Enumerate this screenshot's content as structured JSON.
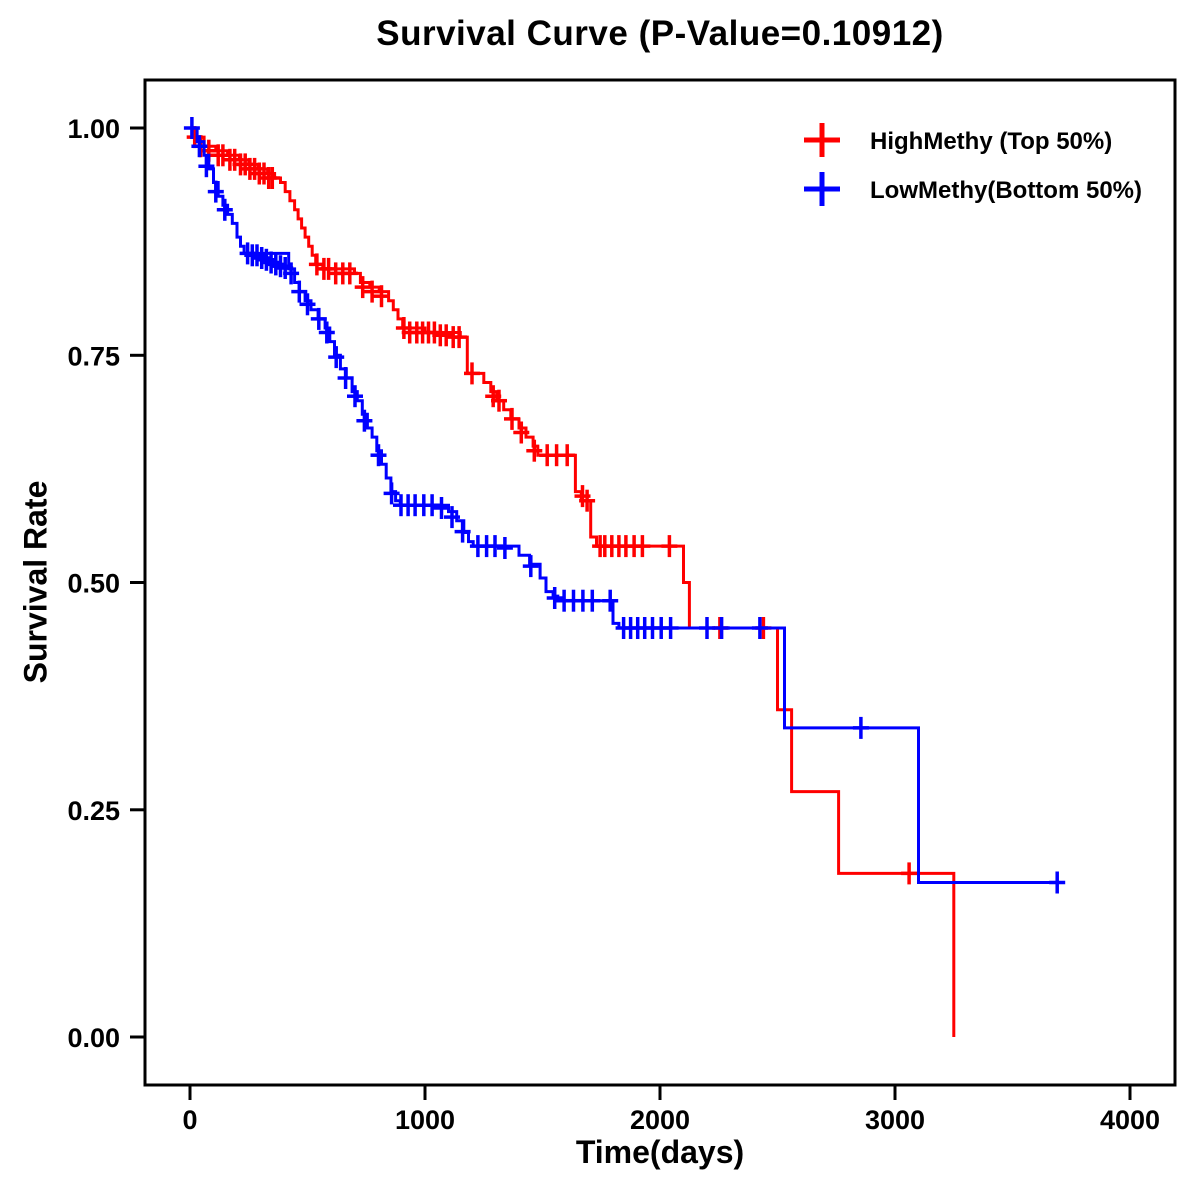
{
  "title": "Survival Curve (P-Value=0.10912)",
  "p_value": 0.10912,
  "chart_data": {
    "type": "line",
    "subtype": "kaplan-meier-step",
    "title": "Survival Curve (P-Value=0.10912)",
    "xlabel": "Time(days)",
    "ylabel": "Survival Rate",
    "xlim": [
      0,
      4000
    ],
    "ylim": [
      0,
      1.0
    ],
    "x_ticks": [
      0,
      1000,
      2000,
      3000,
      4000
    ],
    "x_tick_labels": [
      "0",
      "1000",
      "2000",
      "3000",
      "4000"
    ],
    "y_ticks": [
      0,
      0.25,
      0.5,
      0.75,
      1.0
    ],
    "y_tick_labels": [
      "0.00",
      "0.25",
      "0.50",
      "0.75",
      "1.00"
    ],
    "grid": false,
    "legend_position": "top-right",
    "series": [
      {
        "name": "HighMethy (Top 50%)",
        "color": "#FF0000",
        "extend_to": null,
        "steps": [
          [
            0,
            0.99
          ],
          [
            60,
            0.98
          ],
          [
            110,
            0.975
          ],
          [
            160,
            0.97
          ],
          [
            210,
            0.965
          ],
          [
            250,
            0.96
          ],
          [
            290,
            0.955
          ],
          [
            330,
            0.95
          ],
          [
            360,
            0.945
          ],
          [
            385,
            0.94
          ],
          [
            405,
            0.93
          ],
          [
            425,
            0.92
          ],
          [
            445,
            0.91
          ],
          [
            460,
            0.9
          ],
          [
            475,
            0.89
          ],
          [
            490,
            0.88
          ],
          [
            505,
            0.87
          ],
          [
            520,
            0.86
          ],
          [
            535,
            0.85
          ],
          [
            565,
            0.845
          ],
          [
            700,
            0.84
          ],
          [
            725,
            0.83
          ],
          [
            765,
            0.825
          ],
          [
            805,
            0.82
          ],
          [
            845,
            0.81
          ],
          [
            865,
            0.8
          ],
          [
            885,
            0.79
          ],
          [
            905,
            0.78
          ],
          [
            1000,
            0.775
          ],
          [
            1150,
            0.77
          ],
          [
            1180,
            0.73
          ],
          [
            1250,
            0.72
          ],
          [
            1280,
            0.71
          ],
          [
            1305,
            0.7
          ],
          [
            1335,
            0.69
          ],
          [
            1365,
            0.68
          ],
          [
            1400,
            0.67
          ],
          [
            1430,
            0.66
          ],
          [
            1460,
            0.65
          ],
          [
            1480,
            0.64
          ],
          [
            1640,
            0.6
          ],
          [
            1665,
            0.59
          ],
          [
            1705,
            0.55
          ],
          [
            1730,
            0.54
          ],
          [
            2100,
            0.5
          ],
          [
            2125,
            0.45
          ],
          [
            2500,
            0.36
          ],
          [
            2560,
            0.27
          ],
          [
            2760,
            0.18
          ],
          [
            3250,
            0.0
          ]
        ],
        "censors": [
          [
            20,
            0.99
          ],
          [
            45,
            0.98
          ],
          [
            80,
            0.975
          ],
          [
            120,
            0.97
          ],
          [
            140,
            0.97
          ],
          [
            170,
            0.965
          ],
          [
            190,
            0.965
          ],
          [
            215,
            0.96
          ],
          [
            235,
            0.96
          ],
          [
            255,
            0.955
          ],
          [
            275,
            0.955
          ],
          [
            295,
            0.95
          ],
          [
            315,
            0.95
          ],
          [
            335,
            0.945
          ],
          [
            350,
            0.945
          ],
          [
            540,
            0.85
          ],
          [
            570,
            0.845
          ],
          [
            590,
            0.845
          ],
          [
            620,
            0.84
          ],
          [
            650,
            0.84
          ],
          [
            680,
            0.84
          ],
          [
            735,
            0.825
          ],
          [
            775,
            0.82
          ],
          [
            815,
            0.815
          ],
          [
            910,
            0.78
          ],
          [
            935,
            0.775
          ],
          [
            965,
            0.775
          ],
          [
            990,
            0.775
          ],
          [
            1015,
            0.775
          ],
          [
            1040,
            0.775
          ],
          [
            1065,
            0.772
          ],
          [
            1090,
            0.772
          ],
          [
            1120,
            0.77
          ],
          [
            1145,
            0.77
          ],
          [
            1200,
            0.73
          ],
          [
            1290,
            0.705
          ],
          [
            1315,
            0.7
          ],
          [
            1370,
            0.68
          ],
          [
            1410,
            0.665
          ],
          [
            1465,
            0.645
          ],
          [
            1520,
            0.64
          ],
          [
            1560,
            0.64
          ],
          [
            1605,
            0.64
          ],
          [
            1670,
            0.595
          ],
          [
            1690,
            0.59
          ],
          [
            1745,
            0.54
          ],
          [
            1765,
            0.54
          ],
          [
            1795,
            0.54
          ],
          [
            1825,
            0.54
          ],
          [
            1855,
            0.54
          ],
          [
            1890,
            0.54
          ],
          [
            1925,
            0.54
          ],
          [
            2040,
            0.54
          ],
          [
            2255,
            0.45
          ],
          [
            2440,
            0.45
          ],
          [
            3060,
            0.18
          ]
        ]
      },
      {
        "name": "LowMethy(Bottom 50%)",
        "color": "#0000FF",
        "extend_to": 3720,
        "steps": [
          [
            0,
            1.0
          ],
          [
            30,
            0.985
          ],
          [
            60,
            0.97
          ],
          [
            80,
            0.955
          ],
          [
            100,
            0.94
          ],
          [
            120,
            0.925
          ],
          [
            140,
            0.915
          ],
          [
            160,
            0.905
          ],
          [
            180,
            0.895
          ],
          [
            200,
            0.88
          ],
          [
            215,
            0.87
          ],
          [
            230,
            0.862
          ],
          [
            420,
            0.845
          ],
          [
            445,
            0.83
          ],
          [
            465,
            0.82
          ],
          [
            490,
            0.81
          ],
          [
            515,
            0.8
          ],
          [
            545,
            0.79
          ],
          [
            575,
            0.78
          ],
          [
            595,
            0.765
          ],
          [
            615,
            0.75
          ],
          [
            640,
            0.735
          ],
          [
            665,
            0.725
          ],
          [
            690,
            0.71
          ],
          [
            712,
            0.7
          ],
          [
            733,
            0.685
          ],
          [
            755,
            0.67
          ],
          [
            775,
            0.66
          ],
          [
            795,
            0.645
          ],
          [
            815,
            0.63
          ],
          [
            835,
            0.615
          ],
          [
            855,
            0.6
          ],
          [
            875,
            0.59
          ],
          [
            895,
            0.585
          ],
          [
            1100,
            0.578
          ],
          [
            1135,
            0.568
          ],
          [
            1165,
            0.555
          ],
          [
            1185,
            0.545
          ],
          [
            1205,
            0.54
          ],
          [
            1400,
            0.53
          ],
          [
            1445,
            0.52
          ],
          [
            1490,
            0.505
          ],
          [
            1515,
            0.49
          ],
          [
            1545,
            0.485
          ],
          [
            1565,
            0.48
          ],
          [
            1800,
            0.455
          ],
          [
            1825,
            0.45
          ],
          [
            2530,
            0.34
          ],
          [
            3100,
            0.17
          ]
        ],
        "censors": [
          [
            8,
            1.0
          ],
          [
            40,
            0.98
          ],
          [
            70,
            0.958
          ],
          [
            110,
            0.93
          ],
          [
            148,
            0.91
          ],
          [
            245,
            0.862
          ],
          [
            265,
            0.86
          ],
          [
            285,
            0.86
          ],
          [
            305,
            0.857
          ],
          [
            325,
            0.855
          ],
          [
            345,
            0.852
          ],
          [
            365,
            0.85
          ],
          [
            385,
            0.848
          ],
          [
            405,
            0.846
          ],
          [
            430,
            0.84
          ],
          [
            465,
            0.82
          ],
          [
            500,
            0.806
          ],
          [
            548,
            0.79
          ],
          [
            582,
            0.775
          ],
          [
            622,
            0.748
          ],
          [
            662,
            0.725
          ],
          [
            702,
            0.705
          ],
          [
            742,
            0.678
          ],
          [
            802,
            0.64
          ],
          [
            858,
            0.598
          ],
          [
            898,
            0.585
          ],
          [
            928,
            0.585
          ],
          [
            958,
            0.585
          ],
          [
            995,
            0.585
          ],
          [
            1030,
            0.585
          ],
          [
            1070,
            0.582
          ],
          [
            1115,
            0.572
          ],
          [
            1160,
            0.556
          ],
          [
            1225,
            0.54
          ],
          [
            1262,
            0.54
          ],
          [
            1298,
            0.54
          ],
          [
            1340,
            0.538
          ],
          [
            1450,
            0.518
          ],
          [
            1552,
            0.483
          ],
          [
            1592,
            0.48
          ],
          [
            1632,
            0.48
          ],
          [
            1672,
            0.48
          ],
          [
            1712,
            0.48
          ],
          [
            1788,
            0.48
          ],
          [
            1845,
            0.45
          ],
          [
            1875,
            0.45
          ],
          [
            1905,
            0.45
          ],
          [
            1935,
            0.45
          ],
          [
            1968,
            0.45
          ],
          [
            2005,
            0.45
          ],
          [
            2045,
            0.45
          ],
          [
            2200,
            0.45
          ],
          [
            2262,
            0.45
          ],
          [
            2425,
            0.45
          ],
          [
            2855,
            0.34
          ],
          [
            3690,
            0.17
          ]
        ]
      }
    ]
  }
}
